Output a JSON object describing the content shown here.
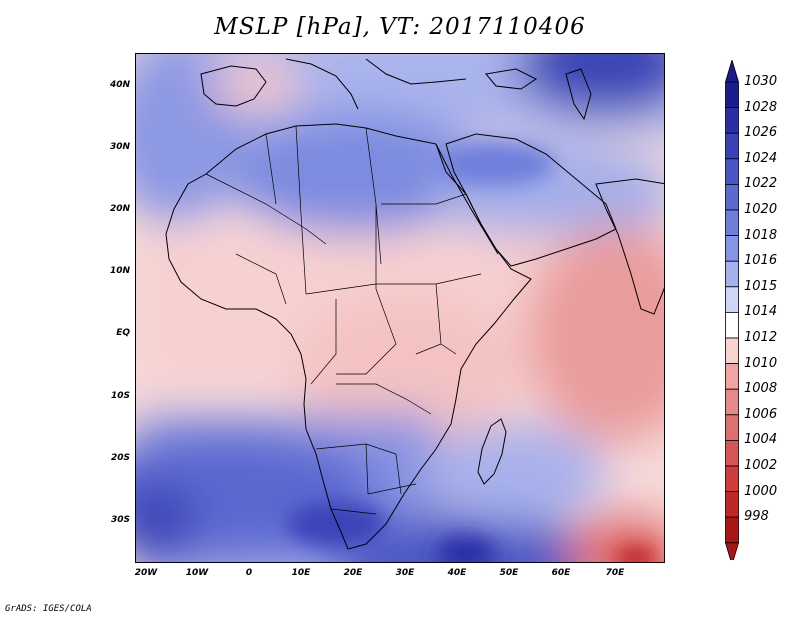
{
  "title": "MSLP [hPa], VT: 2017110406",
  "lat_labels": [
    "40N",
    "30N",
    "20N",
    "10N",
    "EQ",
    "10S",
    "20S",
    "30S"
  ],
  "lon_labels": [
    "20W",
    "10W",
    "0",
    "10E",
    "20E",
    "30E",
    "40E",
    "50E",
    "60E",
    "70E"
  ],
  "colorbar": {
    "levels": [
      "1030",
      "1028",
      "1026",
      "1024",
      "1022",
      "1020",
      "1018",
      "1016",
      "1015",
      "1014",
      "1012",
      "1010",
      "1008",
      "1006",
      "1004",
      "1002",
      "1000",
      "998"
    ],
    "colors": [
      "#1a1b8e",
      "#2a2fa6",
      "#3a42b8",
      "#4a56c6",
      "#5b6ad2",
      "#6e7edb",
      "#8694e4",
      "#a5b0ec",
      "#cfd5f6",
      "#ffffff",
      "#f9d2d2",
      "#f0a4a4",
      "#e78989",
      "#e06f6f",
      "#d85555",
      "#cf3c3c",
      "#c02828",
      "#a81616"
    ]
  },
  "credit": "GrADS: IGES/COLA"
}
